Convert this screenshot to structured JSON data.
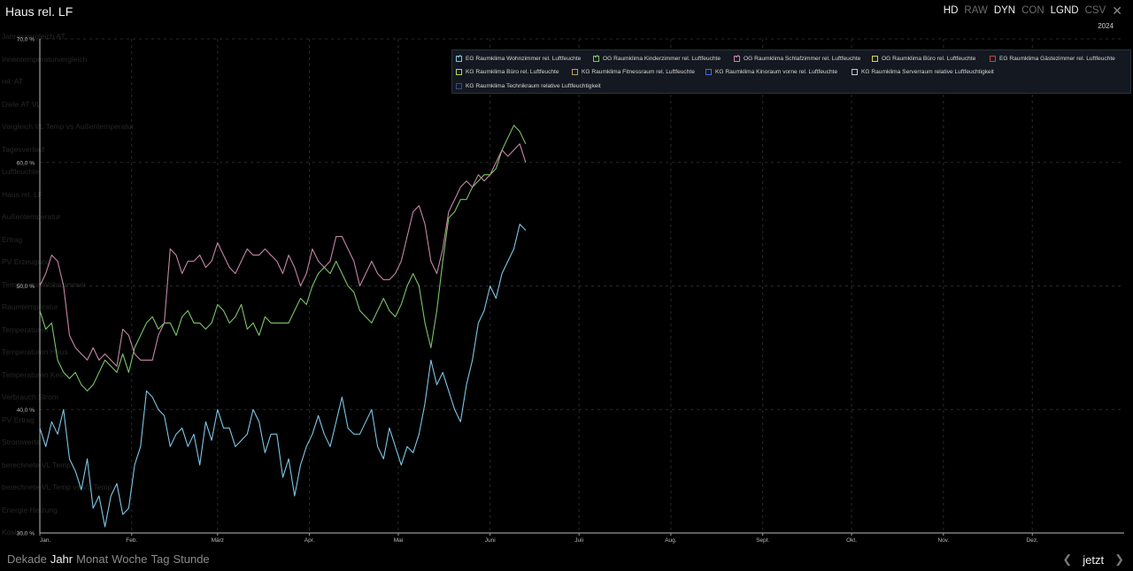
{
  "header": {
    "title": "Haus rel. LF",
    "modes": [
      {
        "label": "HD",
        "active": true
      },
      {
        "label": "RAW",
        "active": false
      },
      {
        "label": "DYN",
        "active": true
      },
      {
        "label": "CON",
        "active": false
      },
      {
        "label": "LGND",
        "active": true
      },
      {
        "label": "CSV",
        "active": false
      }
    ],
    "close_icon": "close-icon",
    "year": "2024"
  },
  "sidebar_ghost": [
    "Jahresvergleich AT",
    "Innentemperaturvergleich",
    "rel. AT",
    "Diele AT VL",
    "Vergleich VL Temp vs Außentemperatur",
    "Tagesverlauf",
    "Luftfeuchte",
    "Haus rel. LF",
    "Außentemperatur",
    "Ertrag",
    "PV Erzeugung",
    "Temperatur Wohnzimmer",
    "Raumtemperatur",
    "Temperaturen",
    "Temperaturen Haus",
    "Temperaturen Keller",
    "Verbrauch Strom",
    "PV Ertrag",
    "Stromwerte",
    "berechnete VL Temp",
    "berechnete VL Temp vs VL Temp",
    "Energie Heizung",
    "Kosten"
  ],
  "legend": {
    "items": [
      {
        "label": "EG Raumklima Wohnzimmer rel. Luftfeuchte",
        "color": "#7ec6e6",
        "checked": true
      },
      {
        "label": "OG Raumklima Kinderzimmer rel. Luftfeuchte",
        "color": "#7cc46a",
        "checked": true
      },
      {
        "label": "OG Raumklima Schlafzimmer rel. Luftfeuchte",
        "color": "#c586a6",
        "checked": true
      },
      {
        "label": "OG Raumklima Büro rel. Luftfeuchte",
        "color": "#d6d84a",
        "checked": false
      },
      {
        "label": "EG Raumklima Gästezimmer rel. Luftfeuchte",
        "color": "#c0473c",
        "checked": false
      },
      {
        "label": "KG Raumklima Büro rel. Luftfeuchte",
        "color": "#b8d44a",
        "checked": false
      },
      {
        "label": "KG Raumklima Fitnessraum rel. Luftfeuchte",
        "color": "#b0a25a",
        "checked": false
      },
      {
        "label": "KG Raumklima Kinoraum vorne rel. Luftfeuchte",
        "color": "#4a6ae0",
        "checked": false
      },
      {
        "label": "KG Raumklima Serverraum relative Luftfeuchtigkeit",
        "color": "#c8c8c8",
        "checked": false
      },
      {
        "label": "KG Raumklima Technikraum relative Luftfeuchtigkeit",
        "color": "#3a4a8a",
        "checked": false
      }
    ]
  },
  "footer": {
    "ranges": [
      {
        "label": "Dekade",
        "active": false
      },
      {
        "label": "Jahr",
        "active": true
      },
      {
        "label": "Monat",
        "active": false
      },
      {
        "label": "Woche",
        "active": false
      },
      {
        "label": "Tag",
        "active": false
      },
      {
        "label": "Stunde",
        "active": false
      }
    ],
    "now_label": "jetzt",
    "prev_icon": "chevron-left-icon",
    "next_icon": "chevron-right-icon"
  },
  "chart_data": {
    "type": "line",
    "x_unit": "day of year 2024",
    "x_range": [
      0,
      366
    ],
    "ylim": [
      30,
      70
    ],
    "y_ticks": [
      {
        "value": 30,
        "label": "30,0 %"
      },
      {
        "value": 40,
        "label": "40,0 %"
      },
      {
        "value": 50,
        "label": "50,0 %"
      },
      {
        "value": 60,
        "label": "60,0 %"
      },
      {
        "value": 70,
        "label": "70,0 %"
      }
    ],
    "x_ticks": [
      {
        "day": 0,
        "label": "Jan."
      },
      {
        "day": 31,
        "label": "Feb."
      },
      {
        "day": 60,
        "label": "März"
      },
      {
        "day": 91,
        "label": "Apr."
      },
      {
        "day": 121,
        "label": "Mai"
      },
      {
        "day": 152,
        "label": "Juni"
      },
      {
        "day": 182,
        "label": "Juli"
      },
      {
        "day": 213,
        "label": "Aug."
      },
      {
        "day": 244,
        "label": "Sept."
      },
      {
        "day": 274,
        "label": "Okt."
      },
      {
        "day": 305,
        "label": "Nov."
      },
      {
        "day": 335,
        "label": "Dez."
      }
    ],
    "grid": true,
    "legend_position": "top-right",
    "series": [
      {
        "name": "EG Raumklima Wohnzimmer rel. Luftfeuchte",
        "color": "#7ec6e6",
        "x": [
          0,
          2,
          4,
          6,
          8,
          10,
          12,
          14,
          16,
          18,
          20,
          22,
          24,
          26,
          28,
          30,
          32,
          34,
          36,
          38,
          40,
          42,
          44,
          46,
          48,
          50,
          52,
          54,
          56,
          58,
          60,
          62,
          64,
          66,
          68,
          70,
          72,
          74,
          76,
          78,
          80,
          82,
          84,
          86,
          88,
          90,
          92,
          94,
          96,
          98,
          100,
          102,
          104,
          106,
          108,
          110,
          112,
          114,
          116,
          118,
          120,
          122,
          124,
          126,
          128,
          130,
          132,
          134,
          136,
          138,
          140,
          142,
          144,
          146,
          148,
          150,
          152,
          154,
          156,
          158,
          160,
          162,
          164
        ],
        "y": [
          38.5,
          37,
          39,
          38,
          40,
          36,
          35,
          33.5,
          36,
          32,
          33,
          30.5,
          33,
          34,
          31.5,
          32,
          35.5,
          37,
          41.5,
          41,
          40,
          39.5,
          37,
          38,
          38.5,
          37,
          38,
          35.5,
          39,
          37.5,
          40,
          38.5,
          38.5,
          37,
          37.5,
          38,
          40,
          39,
          36.5,
          38,
          38,
          34.5,
          36,
          33,
          35.5,
          37,
          38,
          39.5,
          38,
          37,
          39,
          41,
          38.5,
          38,
          38,
          39,
          40,
          37,
          36,
          38.5,
          37,
          35.5,
          37,
          36.5,
          38,
          40.5,
          44,
          42,
          43,
          41.5,
          40,
          39,
          42,
          44,
          47,
          48,
          50,
          49,
          51,
          52,
          53,
          55,
          54.5
        ]
      },
      {
        "name": "OG Raumklima Kinderzimmer rel. Luftfeuchte",
        "color": "#7cc46a",
        "x": [
          0,
          2,
          4,
          6,
          8,
          10,
          12,
          14,
          16,
          18,
          20,
          22,
          24,
          26,
          28,
          30,
          32,
          34,
          36,
          38,
          40,
          42,
          44,
          46,
          48,
          50,
          52,
          54,
          56,
          58,
          60,
          62,
          64,
          66,
          68,
          70,
          72,
          74,
          76,
          78,
          80,
          82,
          84,
          86,
          88,
          90,
          92,
          94,
          96,
          98,
          100,
          102,
          104,
          106,
          108,
          110,
          112,
          114,
          116,
          118,
          120,
          122,
          124,
          126,
          128,
          130,
          132,
          134,
          136,
          138,
          140,
          142,
          144,
          146,
          148,
          150,
          152,
          154,
          156,
          158,
          160,
          162,
          164
        ],
        "y": [
          48,
          46.5,
          47,
          44,
          43,
          42.5,
          43,
          42,
          41.5,
          42,
          43,
          44,
          43.5,
          43,
          44.5,
          43,
          45,
          46,
          47,
          47.5,
          46.5,
          47,
          47,
          46,
          47.5,
          48,
          47,
          47,
          46.5,
          47,
          48.5,
          48,
          47,
          47.5,
          48.5,
          46.5,
          47,
          46,
          47.5,
          47,
          47,
          47,
          47,
          48,
          49,
          48.5,
          50,
          51,
          51.5,
          51,
          52,
          51,
          50,
          49.5,
          48,
          47.5,
          47,
          48,
          49,
          48,
          47.5,
          48.5,
          50,
          51,
          50,
          47,
          45,
          48,
          52,
          55.5,
          56,
          57,
          57,
          58,
          58.5,
          59,
          59,
          59.5,
          61,
          62,
          63,
          62.5,
          61.5
        ]
      },
      {
        "name": "OG Raumklima Schlafzimmer rel. Luftfeuchte",
        "color": "#c586a6",
        "x": [
          0,
          2,
          4,
          6,
          8,
          10,
          12,
          14,
          16,
          18,
          20,
          22,
          24,
          26,
          28,
          30,
          32,
          34,
          36,
          38,
          40,
          42,
          44,
          46,
          48,
          50,
          52,
          54,
          56,
          58,
          60,
          62,
          64,
          66,
          68,
          70,
          72,
          74,
          76,
          78,
          80,
          82,
          84,
          86,
          88,
          90,
          92,
          94,
          96,
          98,
          100,
          102,
          104,
          106,
          108,
          110,
          112,
          114,
          116,
          118,
          120,
          122,
          124,
          126,
          128,
          130,
          132,
          134,
          136,
          138,
          140,
          142,
          144,
          146,
          148,
          150,
          152,
          154,
          156,
          158,
          160,
          162,
          164
        ],
        "y": [
          50,
          51,
          52.5,
          52,
          50,
          46,
          45,
          44.5,
          44,
          45,
          44,
          44.5,
          44,
          43.5,
          46.5,
          46,
          44.5,
          44,
          44,
          44,
          46,
          47,
          53,
          52.5,
          51,
          52,
          52,
          52.5,
          51.5,
          52,
          53.5,
          52.5,
          51.5,
          51,
          52,
          53,
          52.5,
          52.5,
          53,
          52.5,
          52,
          51,
          52.5,
          51.5,
          50,
          51,
          53,
          52,
          51.5,
          52,
          54,
          54,
          53,
          52,
          50,
          51,
          52,
          51,
          50.5,
          50.5,
          51,
          52,
          54,
          56,
          56.5,
          55,
          52,
          51,
          53,
          56,
          57,
          58,
          58.5,
          58,
          59,
          58.5,
          59,
          60,
          61,
          60.5,
          61,
          61.5,
          60
        ]
      }
    ]
  }
}
